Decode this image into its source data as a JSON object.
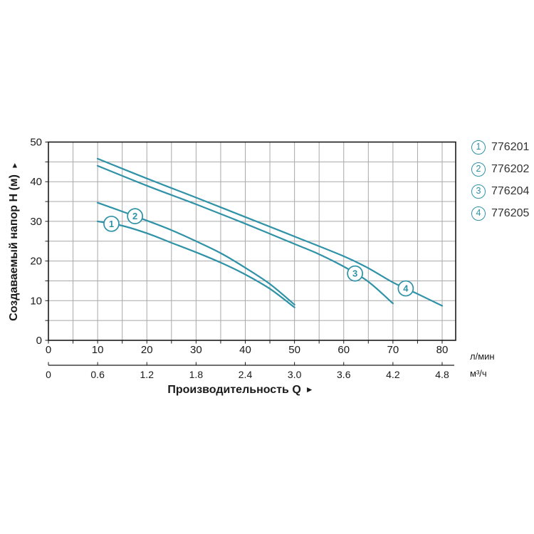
{
  "chart": {
    "ylabel": "Создаваемый напор H (м)",
    "ylabel_arrow": "▲",
    "xlabel": "Производительность Q",
    "xlabel_arrow": "►",
    "unit_primary": "л/мин",
    "unit_secondary": "м³/ч"
  },
  "legend": {
    "items": [
      {
        "num": "1",
        "label": "776201"
      },
      {
        "num": "2",
        "label": "776202"
      },
      {
        "num": "3",
        "label": "776204"
      },
      {
        "num": "4",
        "label": "776205"
      }
    ]
  },
  "chart_data": {
    "type": "line",
    "title": "",
    "xlabel": "Производительность Q",
    "ylabel": "Создаваемый напор H (м)",
    "x_axis": {
      "primary_unit": "л/мин",
      "primary_ticks": [
        0,
        10,
        20,
        30,
        40,
        50,
        60,
        70,
        80
      ],
      "secondary_unit": "м³/ч",
      "secondary_ticks": [
        0,
        0.6,
        1.2,
        1.8,
        2.4,
        3.0,
        3.6,
        4.2,
        4.8
      ],
      "secondary_tick_labels": [
        "0",
        "0.6",
        "1.2",
        "1.8",
        "2.4",
        "3.0",
        "3.6",
        "4.2",
        "4.8"
      ],
      "xlim": [
        0,
        82.7
      ]
    },
    "y_axis": {
      "ticks": [
        0,
        10,
        20,
        30,
        40,
        50
      ],
      "ylim": [
        0,
        50
      ]
    },
    "grid": {
      "on": true,
      "step": 5
    },
    "legend_position": "right",
    "colors": {
      "curve": "#2f92a7",
      "grid": "#a8a8a8",
      "axis": "#1a1a1a",
      "tick_text": "#1a1a1a",
      "legend_text": "#333333"
    },
    "series": [
      {
        "num": "1",
        "name": "776201",
        "marker_x": 12.8,
        "points": [
          [
            10,
            30.0
          ],
          [
            15,
            28.9
          ],
          [
            20,
            27.0
          ],
          [
            25,
            24.6
          ],
          [
            30,
            22.2
          ],
          [
            35,
            19.6
          ],
          [
            40,
            16.6
          ],
          [
            45,
            13.0
          ],
          [
            50,
            8.3
          ]
        ]
      },
      {
        "num": "2",
        "name": "776202",
        "marker_x": 17.6,
        "points": [
          [
            10,
            34.7
          ],
          [
            15,
            32.5
          ],
          [
            20,
            30.2
          ],
          [
            25,
            27.8
          ],
          [
            30,
            25.0
          ],
          [
            35,
            22.0
          ],
          [
            40,
            18.3
          ],
          [
            45,
            14.2
          ],
          [
            50,
            9.0
          ]
        ]
      },
      {
        "num": "3",
        "name": "776204",
        "marker_x": 62.3,
        "points": [
          [
            10,
            44.0
          ],
          [
            20,
            39.0
          ],
          [
            30,
            34.3
          ],
          [
            40,
            29.4
          ],
          [
            50,
            24.3
          ],
          [
            55,
            21.7
          ],
          [
            60,
            18.6
          ],
          [
            65,
            14.8
          ],
          [
            70,
            9.3
          ]
        ]
      },
      {
        "num": "4",
        "name": "776205",
        "marker_x": 72.6,
        "points": [
          [
            10,
            45.8
          ],
          [
            20,
            40.8
          ],
          [
            30,
            36.0
          ],
          [
            40,
            31.1
          ],
          [
            50,
            26.2
          ],
          [
            60,
            21.2
          ],
          [
            65,
            18.2
          ],
          [
            70,
            14.6
          ],
          [
            75,
            11.7
          ],
          [
            80,
            8.7
          ]
        ]
      }
    ]
  }
}
